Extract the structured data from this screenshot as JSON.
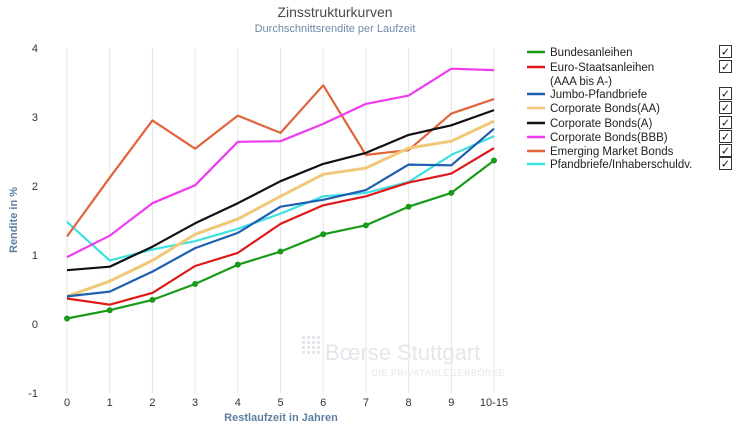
{
  "chart_data": {
    "type": "line",
    "title": "Zinsstrukturkurven",
    "subtitle": "Durchschnittsrendite per Laufzeit",
    "xlabel": "Restlaufzeit in Jahren",
    "ylabel": "Rendite in %",
    "categories": [
      "0",
      "1",
      "2",
      "3",
      "4",
      "5",
      "6",
      "7",
      "8",
      "9",
      "10-15"
    ],
    "ylim": [
      -1,
      4
    ],
    "yticks": [
      "-1",
      "0",
      "1",
      "2",
      "3",
      "4"
    ],
    "grid": "vertical",
    "legend_position": "right",
    "series": [
      {
        "name": "Bundesanleihen",
        "color": "#1a9a1a",
        "markers": true,
        "checked": true,
        "values": [
          0.08,
          0.2,
          0.35,
          0.58,
          0.86,
          1.05,
          1.3,
          1.43,
          1.7,
          1.9,
          2.37
        ]
      },
      {
        "name": "Euro-Staatsanleihen",
        "name_line2": "(AAA bis A-)",
        "color": "#e01818",
        "markers": false,
        "checked": true,
        "values": [
          0.37,
          0.28,
          0.45,
          0.84,
          1.03,
          1.45,
          1.72,
          1.85,
          2.05,
          2.18,
          2.55
        ]
      },
      {
        "name": "Jumbo-Pfandbriefe",
        "color": "#1f5fb0",
        "markers": false,
        "checked": true,
        "values": [
          0.4,
          0.47,
          0.76,
          1.1,
          1.32,
          1.7,
          1.8,
          1.94,
          2.31,
          2.3,
          2.83
        ]
      },
      {
        "name": "Corporate Bonds(AA)",
        "color": "#f0c878",
        "markers": false,
        "checked": true,
        "values": [
          0.4,
          0.62,
          0.92,
          1.3,
          1.52,
          1.85,
          2.17,
          2.26,
          2.55,
          2.65,
          2.94
        ]
      },
      {
        "name": "Corporate Bonds(A)",
        "color": "#111111",
        "markers": false,
        "checked": true,
        "values": [
          0.78,
          0.83,
          1.12,
          1.46,
          1.75,
          2.07,
          2.32,
          2.48,
          2.74,
          2.88,
          3.1
        ]
      },
      {
        "name": "Corporate Bonds(BBB)",
        "color": "#ee3cee",
        "markers": false,
        "checked": true,
        "values": [
          0.97,
          1.28,
          1.75,
          2.01,
          2.64,
          2.65,
          2.9,
          3.19,
          3.31,
          3.7,
          3.68
        ]
      },
      {
        "name": "Emerging Market Bonds",
        "color": "#e0643c",
        "markers": false,
        "checked": true,
        "values": [
          1.27,
          2.12,
          2.95,
          2.54,
          3.02,
          2.77,
          3.46,
          2.45,
          2.52,
          3.05,
          3.26
        ]
      },
      {
        "name": "Pfandbriefe/Inhaberschuldv.",
        "color": "#3ee0e0",
        "markers": false,
        "checked": true,
        "values": [
          1.48,
          0.92,
          1.08,
          1.2,
          1.38,
          1.6,
          1.85,
          1.9,
          2.06,
          2.45,
          2.72
        ]
      }
    ]
  },
  "watermark": {
    "brand": "Bœrse Stuttgart",
    "tagline": "DIE PRIVATANLEGERBÖRSE"
  },
  "checkbox_mark": "✓"
}
